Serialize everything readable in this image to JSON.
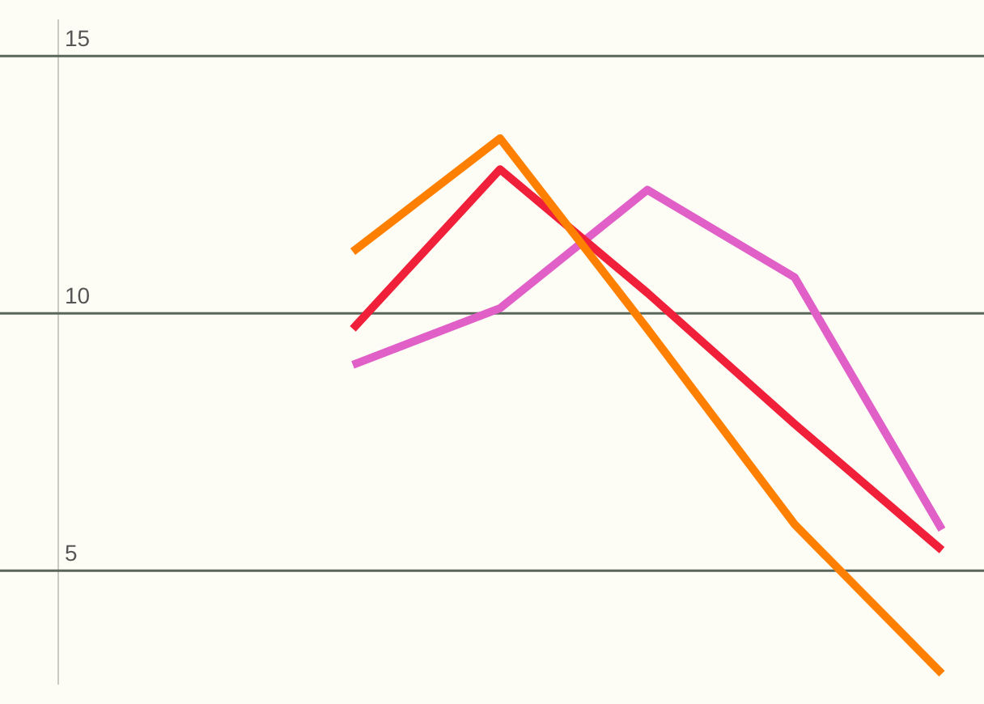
{
  "chart_data": {
    "type": "line",
    "categories": [
      null,
      null,
      null,
      null,
      null,
      null,
      null
    ],
    "series": [
      {
        "color": "#ff8000",
        "values": [
          null,
          null,
          11.2,
          13.4,
          9.7,
          5.9,
          3.0
        ]
      },
      {
        "color": "#f0203a",
        "values": [
          null,
          null,
          9.7,
          12.8,
          10.4,
          7.85,
          5.4
        ]
      },
      {
        "color": "#e060c8",
        "values": [
          null,
          null,
          9.0,
          10.1,
          12.4,
          10.7,
          5.8
        ]
      }
    ],
    "ylim": [
      2.8,
      15.7
    ],
    "yticks": [
      5,
      10,
      15
    ],
    "grid": "y",
    "legend": false,
    "marker": "none",
    "line_style": "solid",
    "tick_labels": "y"
  }
}
